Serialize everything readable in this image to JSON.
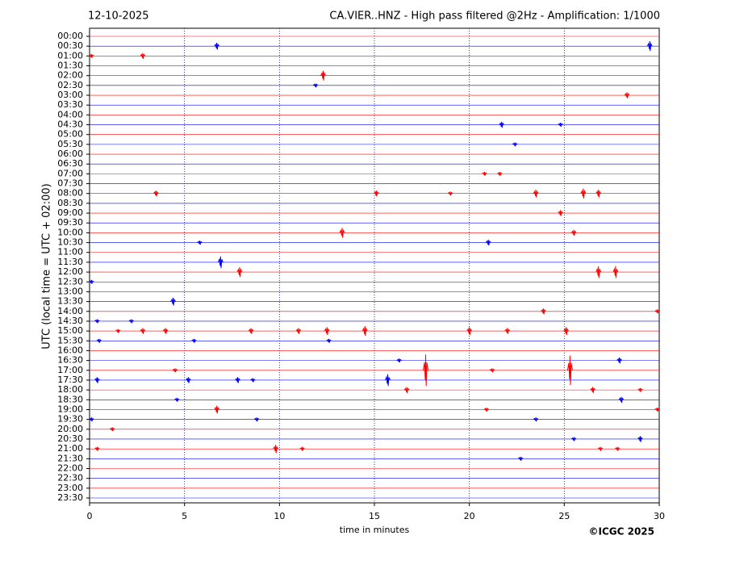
{
  "chart_data": {
    "type": "helicorder",
    "title": "12-10-2025",
    "subtitle": "CA.VIER..HNZ - High pass filtered @2Hz - Amplification: 1/1000",
    "y_label": "UTC (local time = UTC + 02:00)",
    "x_label": "time in minutes",
    "credit": "©ICGC 2025",
    "xlim": [
      0,
      30
    ],
    "xticks": [
      0,
      5,
      10,
      15,
      20,
      25,
      30
    ],
    "grid": true,
    "categories": [
      "00:00",
      "00:30",
      "01:00",
      "01:30",
      "02:00",
      "02:30",
      "03:00",
      "03:30",
      "04:00",
      "04:30",
      "05:00",
      "05:30",
      "06:00",
      "06:30",
      "07:00",
      "07:30",
      "08:00",
      "08:30",
      "09:00",
      "09:30",
      "10:00",
      "10:30",
      "11:00",
      "11:30",
      "12:00",
      "12:30",
      "13:00",
      "13:30",
      "14:00",
      "14:30",
      "15:00",
      "15:30",
      "16:00",
      "16:30",
      "17:00",
      "17:30",
      "18:00",
      "18:30",
      "19:00",
      "19:30",
      "20:00",
      "20:30",
      "21:00",
      "21:30",
      "22:00",
      "22:30",
      "23:00",
      "23:30"
    ],
    "series": [
      {
        "color": "#ff0000",
        "x": [],
        "values": []
      },
      {
        "color": "#0000ff",
        "x": [
          6.7,
          29.5
        ],
        "values": [
          0.35,
          0.5
        ]
      },
      {
        "color": "#ff0000",
        "x": [
          0.1,
          2.8
        ],
        "values": [
          0.2,
          0.3
        ]
      },
      {
        "color": "#0000ff",
        "x": [],
        "values": []
      },
      {
        "color": "#ff0000",
        "x": [
          12.3
        ],
        "values": [
          0.5
        ]
      },
      {
        "color": "#0000ff",
        "x": [
          11.9
        ],
        "values": [
          0.2
        ]
      },
      {
        "color": "#ff0000",
        "x": [
          28.3
        ],
        "values": [
          0.3
        ]
      },
      {
        "color": "#0000ff",
        "x": [],
        "values": []
      },
      {
        "color": "#ff0000",
        "x": [],
        "values": []
      },
      {
        "color": "#0000ff",
        "x": [
          21.7,
          24.8
        ],
        "values": [
          0.3,
          0.2
        ]
      },
      {
        "color": "#ff0000",
        "x": [],
        "values": []
      },
      {
        "color": "#0000ff",
        "x": [
          22.4
        ],
        "values": [
          0.2
        ]
      },
      {
        "color": "#ff0000",
        "x": [],
        "values": []
      },
      {
        "color": "#0000ff",
        "x": [],
        "values": []
      },
      {
        "color": "#ff0000",
        "x": [
          20.8,
          21.6
        ],
        "values": [
          0.2,
          0.2
        ]
      },
      {
        "color": "#0000ff",
        "x": [],
        "values": []
      },
      {
        "color": "#ff0000",
        "x": [
          3.5,
          15.1,
          19.0,
          23.5,
          26.0,
          26.8
        ],
        "values": [
          0.3,
          0.3,
          0.2,
          0.4,
          0.5,
          0.4
        ]
      },
      {
        "color": "#0000ff",
        "x": [],
        "values": []
      },
      {
        "color": "#ff0000",
        "x": [
          24.8
        ],
        "values": [
          0.3
        ]
      },
      {
        "color": "#0000ff",
        "x": [],
        "values": []
      },
      {
        "color": "#ff0000",
        "x": [
          13.3,
          25.5
        ],
        "values": [
          0.5,
          0.3
        ]
      },
      {
        "color": "#0000ff",
        "x": [
          5.8,
          21.0
        ],
        "values": [
          0.2,
          0.3
        ]
      },
      {
        "color": "#ff0000",
        "x": [],
        "values": []
      },
      {
        "color": "#0000ff",
        "x": [
          6.9
        ],
        "values": [
          0.6
        ]
      },
      {
        "color": "#ff0000",
        "x": [
          7.9,
          26.8,
          27.7
        ],
        "values": [
          0.5,
          0.6,
          0.6
        ]
      },
      {
        "color": "#0000ff",
        "x": [
          0.1
        ],
        "values": [
          0.2
        ]
      },
      {
        "color": "#ff0000",
        "x": [],
        "values": []
      },
      {
        "color": "#0000ff",
        "x": [
          4.4
        ],
        "values": [
          0.4
        ]
      },
      {
        "color": "#ff0000",
        "x": [
          23.9,
          29.9
        ],
        "values": [
          0.3,
          0.2
        ]
      },
      {
        "color": "#0000ff",
        "x": [
          0.4,
          2.2
        ],
        "values": [
          0.2,
          0.2
        ]
      },
      {
        "color": "#ff0000",
        "x": [
          1.5,
          2.8,
          4.0,
          8.5,
          11.0,
          12.5,
          14.5,
          20.0,
          22.0,
          25.1
        ],
        "values": [
          0.2,
          0.3,
          0.3,
          0.3,
          0.3,
          0.4,
          0.5,
          0.4,
          0.3,
          0.4
        ]
      },
      {
        "color": "#0000ff",
        "x": [
          0.5,
          5.5,
          12.6
        ],
        "values": [
          0.2,
          0.2,
          0.2
        ]
      },
      {
        "color": "#ff0000",
        "x": [],
        "values": []
      },
      {
        "color": "#0000ff",
        "x": [
          16.3,
          27.9
        ],
        "values": [
          0.2,
          0.3
        ]
      },
      {
        "color": "#ff0000",
        "x": [
          4.5,
          17.7,
          21.2,
          25.3
        ],
        "values": [
          0.2,
          1.6,
          0.2,
          1.5
        ]
      },
      {
        "color": "#0000ff",
        "x": [
          0.4,
          5.2,
          7.8,
          8.6,
          15.7
        ],
        "values": [
          0.3,
          0.3,
          0.3,
          0.2,
          0.6
        ]
      },
      {
        "color": "#ff0000",
        "x": [
          16.7,
          26.5,
          29.0
        ],
        "values": [
          0.3,
          0.3,
          0.2
        ]
      },
      {
        "color": "#0000ff",
        "x": [
          4.6,
          28.0
        ],
        "values": [
          0.2,
          0.3
        ]
      },
      {
        "color": "#ff0000",
        "x": [
          6.7,
          20.9,
          29.9
        ],
        "values": [
          0.4,
          0.2,
          0.2
        ]
      },
      {
        "color": "#0000ff",
        "x": [
          0.1,
          8.8,
          23.5
        ],
        "values": [
          0.2,
          0.2,
          0.2
        ]
      },
      {
        "color": "#ff0000",
        "x": [
          1.2
        ],
        "values": [
          0.2
        ]
      },
      {
        "color": "#0000ff",
        "x": [
          25.5,
          29.0
        ],
        "values": [
          0.2,
          0.3
        ]
      },
      {
        "color": "#ff0000",
        "x": [
          0.4,
          9.8,
          11.2,
          26.9,
          27.8
        ],
        "values": [
          0.2,
          0.4,
          0.2,
          0.2,
          0.2
        ]
      },
      {
        "color": "#0000ff",
        "x": [
          22.7
        ],
        "values": [
          0.2
        ]
      },
      {
        "color": "#ff0000",
        "x": [],
        "values": []
      },
      {
        "color": "#0000ff",
        "x": [],
        "values": []
      },
      {
        "color": "#ff0000",
        "x": [],
        "values": []
      },
      {
        "color": "#0000ff",
        "x": [],
        "values": []
      }
    ]
  }
}
